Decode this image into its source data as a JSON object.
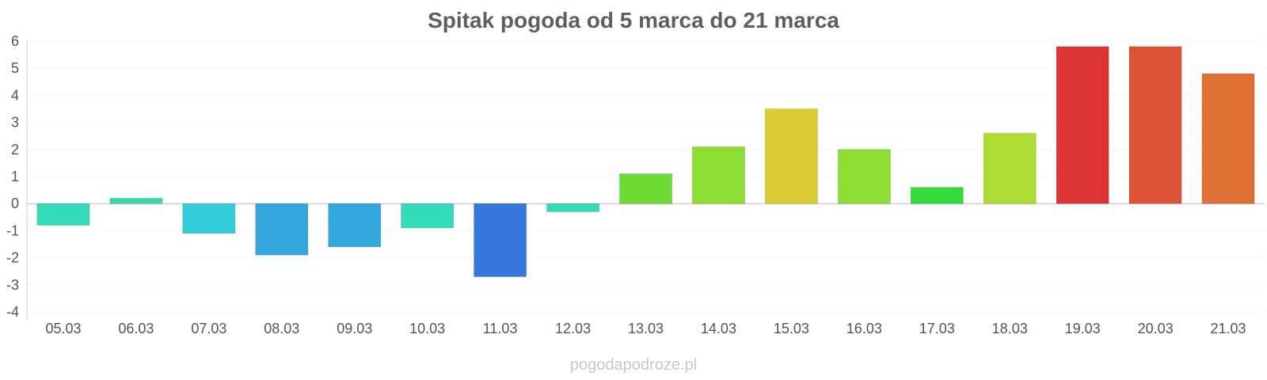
{
  "chart_data": {
    "type": "bar",
    "title": "Spitak pogoda od 5 marca do 21 marca",
    "xlabel": "",
    "ylabel": "",
    "categories": [
      "05.03",
      "06.03",
      "07.03",
      "08.03",
      "09.03",
      "10.03",
      "11.03",
      "12.03",
      "13.03",
      "14.03",
      "15.03",
      "16.03",
      "17.03",
      "18.03",
      "19.03",
      "20.03",
      "21.03"
    ],
    "values": [
      -0.8,
      0.2,
      -1.1,
      -1.9,
      -1.6,
      -0.9,
      -2.7,
      -0.3,
      1.1,
      2.1,
      3.5,
      2.0,
      0.6,
      2.6,
      5.8,
      5.8,
      4.8
    ],
    "colors": [
      "#33dbb8",
      "#33dbac",
      "#33cdd9",
      "#33a6dd",
      "#33a6dd",
      "#33dbb8",
      "#3677dc",
      "#33dbb8",
      "#6ddb33",
      "#8ddd35",
      "#dbcc33",
      "#8ddd35",
      "#33dc3b",
      "#addd35",
      "#dd3535",
      "#de5235",
      "#de7035"
    ],
    "ylim": [
      -4,
      6
    ],
    "yticks": [
      -4,
      -3,
      -2,
      -1,
      0,
      1,
      2,
      3,
      4,
      5,
      6
    ],
    "grid": true,
    "legend": "none"
  },
  "watermark": "pogodapodroze.pl"
}
